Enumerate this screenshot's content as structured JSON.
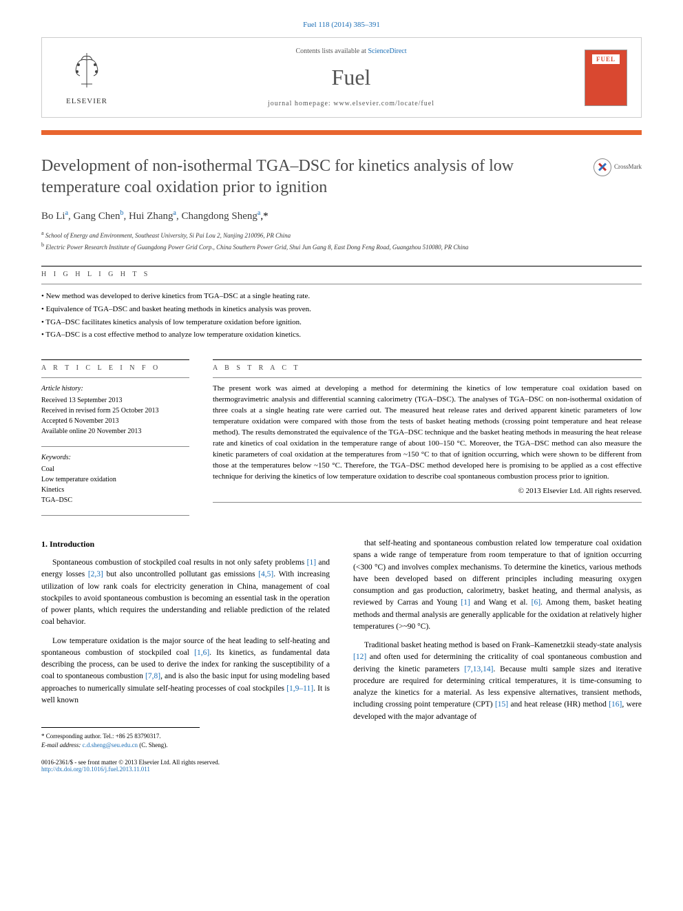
{
  "citation": "Fuel 118 (2014) 385–391",
  "masthead": {
    "contents_prefix": "Contents lists available at ",
    "contents_link": "ScienceDirect",
    "journal": "Fuel",
    "homepage_prefix": "journal homepage: ",
    "homepage_url": "www.elsevier.com/locate/fuel",
    "publisher": "ELSEVIER",
    "cover_label": "FUEL"
  },
  "title": "Development of non-isothermal TGA–DSC for kinetics analysis of low temperature coal oxidation prior to ignition",
  "crossmark_label": "CrossMark",
  "authors_html": "Bo Li|a|, Gang Chen|b|, Hui Zhang|a|, Changdong Sheng|a,*",
  "authors": [
    {
      "name": "Bo Li",
      "aff": "a"
    },
    {
      "name": "Gang Chen",
      "aff": "b"
    },
    {
      "name": "Hui Zhang",
      "aff": "a"
    },
    {
      "name": "Changdong Sheng",
      "aff": "a",
      "corr": true
    }
  ],
  "affiliations": [
    {
      "key": "a",
      "text": "School of Energy and Environment, Southeast University, Si Pai Lou 2, Nanjing 210096, PR China"
    },
    {
      "key": "b",
      "text": "Electric Power Research Institute of Guangdong Power Grid Corp., China Southern Power Grid, Shui Jun Gang 8, East Dong Feng Road, Guangzhou 510080, PR China"
    }
  ],
  "highlights_label": "H I G H L I G H T S",
  "highlights": [
    "New method was developed to derive kinetics from TGA–DSC at a single heating rate.",
    "Equivalence of TGA–DSC and basket heating methods in kinetics analysis was proven.",
    "TGA–DSC facilitates kinetics analysis of low temperature oxidation before ignition.",
    "TGA–DSC is a cost effective method to analyze low temperature oxidation kinetics."
  ],
  "info_label": "A R T I C L E   I N F O",
  "abstract_label": "A B S T R A C T",
  "article_history_label": "Article history:",
  "article_history": [
    "Received 13 September 2013",
    "Received in revised form 25 October 2013",
    "Accepted 6 November 2013",
    "Available online 20 November 2013"
  ],
  "keywords_label": "Keywords:",
  "keywords": [
    "Coal",
    "Low temperature oxidation",
    "Kinetics",
    "TGA–DSC"
  ],
  "abstract": "The present work was aimed at developing a method for determining the kinetics of low temperature coal oxidation based on thermogravimetric analysis and differential scanning calorimetry (TGA–DSC). The analyses of TGA–DSC on non-isothermal oxidation of three coals at a single heating rate were carried out. The measured heat release rates and derived apparent kinetic parameters of low temperature oxidation were compared with those from the tests of basket heating methods (crossing point temperature and heat release method). The results demonstrated the equivalence of the TGA–DSC technique and the basket heating methods in measuring the heat release rate and kinetics of coal oxidation in the temperature range of about 100–150 °C. Moreover, the TGA–DSC method can also measure the kinetic parameters of coal oxidation at the temperatures from ~150 °C to that of ignition occurring, which were shown to be different from those at the temperatures below ~150 °C. Therefore, the TGA–DSC method developed here is promising to be applied as a cost effective technique for deriving the kinetics of low temperature oxidation to describe coal spontaneous combustion process prior to ignition.",
  "abstract_copyright": "© 2013 Elsevier Ltd. All rights reserved.",
  "intro_heading": "1. Introduction",
  "body_left": [
    "Spontaneous combustion of stockpiled coal results in not only safety problems [1] and energy losses [2,3] but also uncontrolled pollutant gas emissions [4,5]. With increasing utilization of low rank coals for electricity generation in China, management of coal stockpiles to avoid spontaneous combustion is becoming an essential task in the operation of power plants, which requires the understanding and reliable prediction of the related coal behavior.",
    "Low temperature oxidation is the major source of the heat leading to self-heating and spontaneous combustion of stockpiled coal [1,6]. Its kinetics, as fundamental data describing the process, can be used to derive the index for ranking the susceptibility of a coal to spontaneous combustion [7,8], and is also the basic input for using modeling based approaches to numerically simulate self-heating processes of coal stockpiles [1,9–11]. It is well known"
  ],
  "body_right": [
    "that self-heating and spontaneous combustion related low temperature coal oxidation spans a wide range of temperature from room temperature to that of ignition occurring (<300 °C) and involves complex mechanisms. To determine the kinetics, various methods have been developed based on different principles including measuring oxygen consumption and gas production, calorimetry, basket heating, and thermal analysis, as reviewed by Carras and Young [1] and Wang et al. [6]. Among them, basket heating methods and thermal analysis are generally applicable for the oxidation at relatively higher temperatures (>~90 °C).",
    "Traditional basket heating method is based on Frank–Kamenetzkii steady-state analysis [12] and often used for determining the criticality of coal spontaneous combustion and deriving the kinetic parameters [7,13,14]. Because multi sample sizes and iterative procedure are required for determining critical temperatures, it is time-consuming to analyze the kinetics for a material. As less expensive alternatives, transient methods, including crossing point temperature (CPT) [15] and heat release (HR) method [16], were developed with the major advantage of"
  ],
  "corr_author": {
    "label": "* Corresponding author. Tel.: +86 25 83790317.",
    "email_label": "E-mail address:",
    "email": "c.d.sheng@seu.edu.cn",
    "email_name": "(C. Sheng)."
  },
  "footer": {
    "issn_line": "0016-2361/$ - see front matter © 2013 Elsevier Ltd. All rights reserved.",
    "doi": "http://dx.doi.org/10.1016/j.fuel.2013.11.011"
  },
  "colors": {
    "link": "#1a6db5",
    "accent_bar": "#e8652f",
    "cover": "#d94830",
    "text": "#000000",
    "title_gray": "#4a4a4a"
  }
}
